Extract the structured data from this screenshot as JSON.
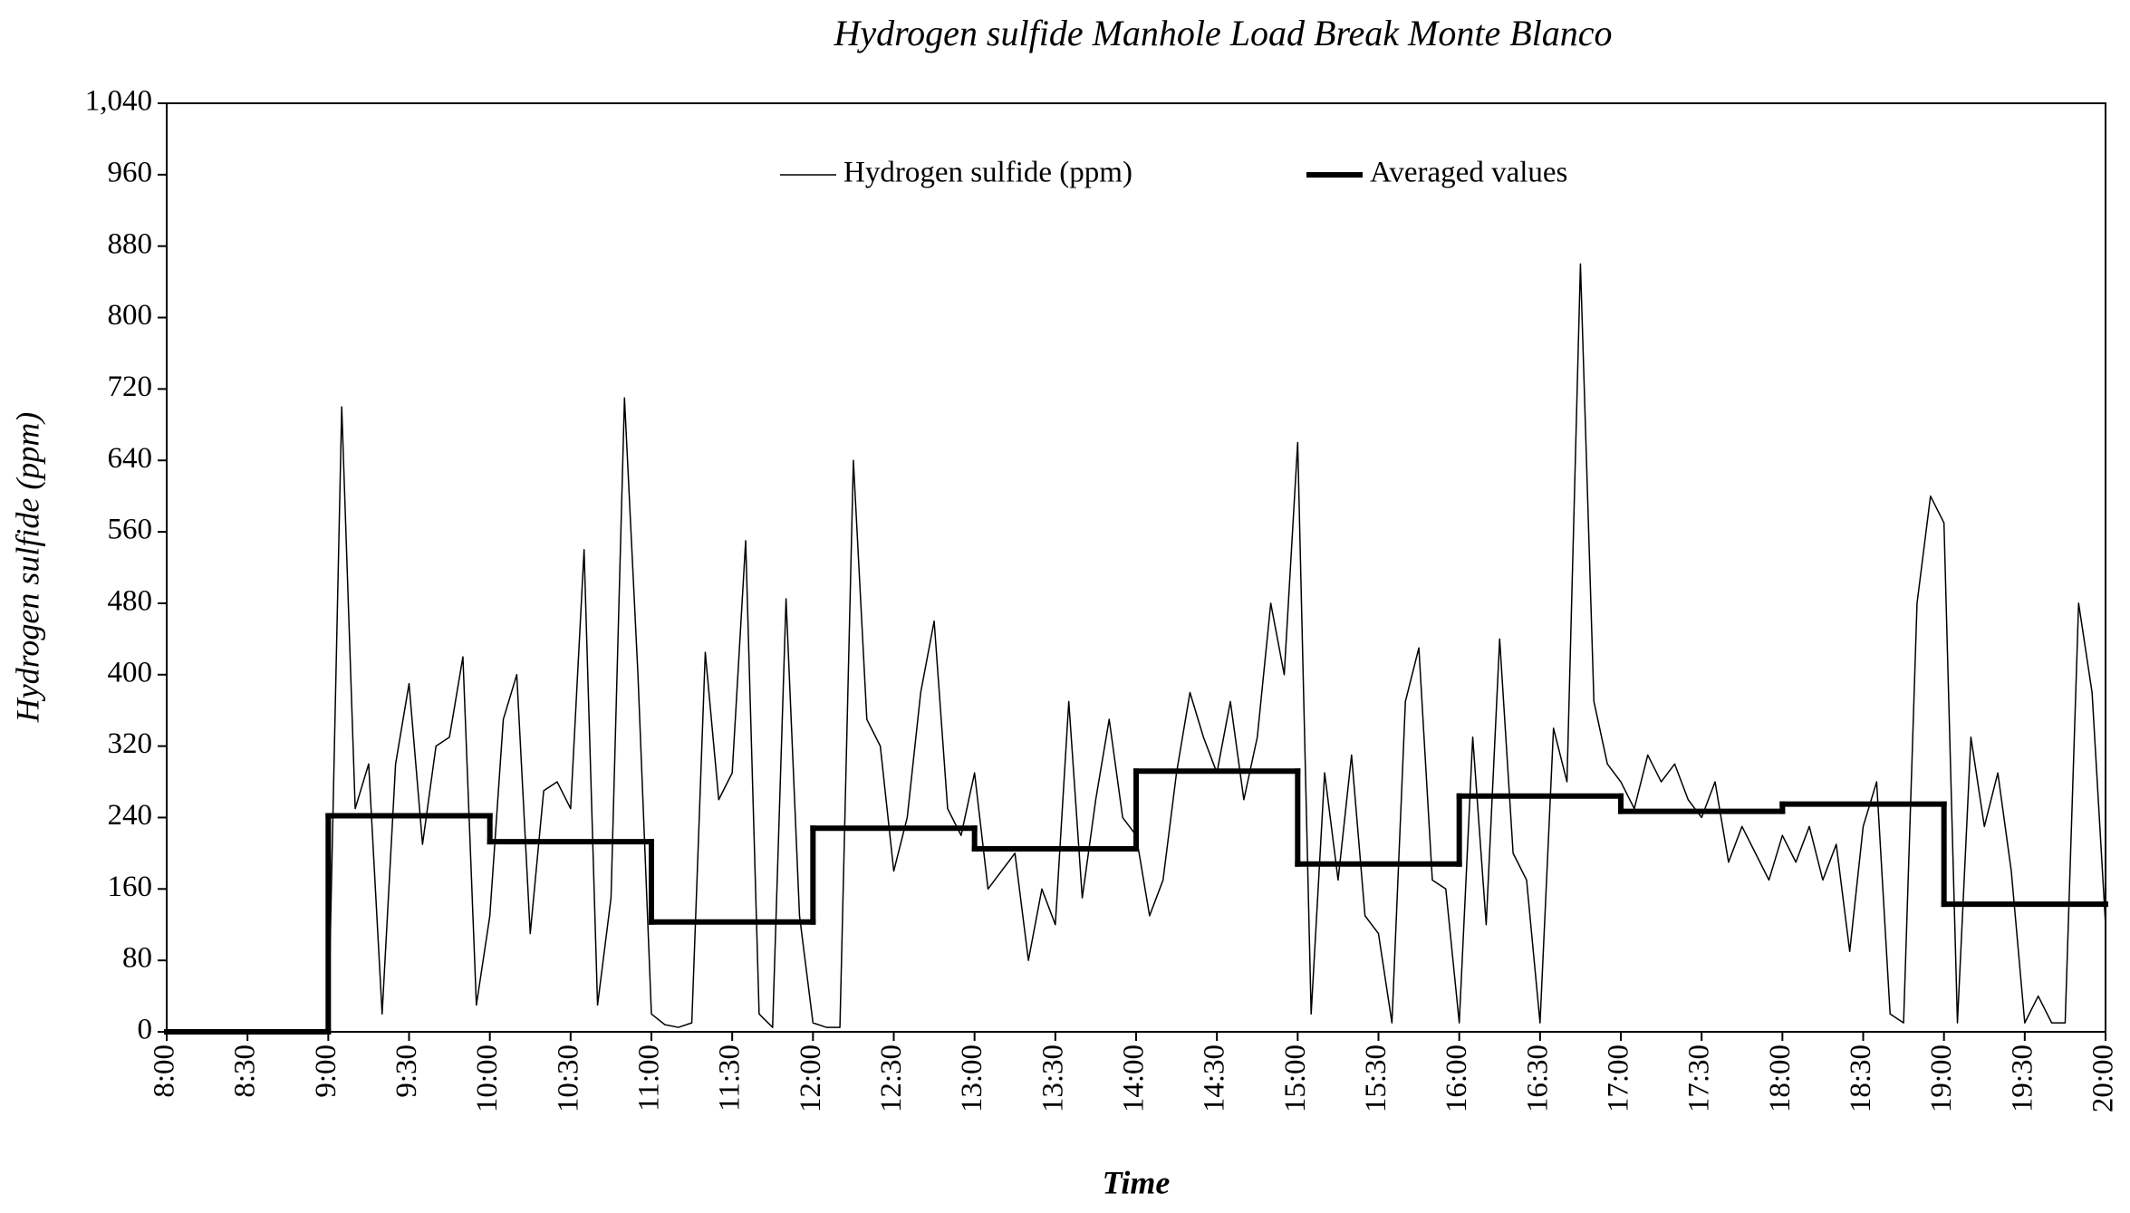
{
  "chart_data": {
    "type": "line",
    "title": "Hydrogen sulfide Manhole Load Break Monte Blanco",
    "x_label": "Time",
    "y_label": "Hydrogen sulfide (ppm)",
    "legend": "top",
    "xlim": [
      480,
      1200
    ],
    "xticks": [
      {
        "value": 480,
        "label": "8:00"
      },
      {
        "value": 510,
        "label": "8:30"
      },
      {
        "value": 540,
        "label": "9:00"
      },
      {
        "value": 570,
        "label": "9:30"
      },
      {
        "value": 600,
        "label": "10:00"
      },
      {
        "value": 630,
        "label": "10:30"
      },
      {
        "value": 660,
        "label": "11:00"
      },
      {
        "value": 690,
        "label": "11:30"
      },
      {
        "value": 720,
        "label": "12:00"
      },
      {
        "value": 750,
        "label": "12:30"
      },
      {
        "value": 780,
        "label": "13:00"
      },
      {
        "value": 810,
        "label": "13:30"
      },
      {
        "value": 840,
        "label": "14:00"
      },
      {
        "value": 870,
        "label": "14:30"
      },
      {
        "value": 900,
        "label": "15:00"
      },
      {
        "value": 930,
        "label": "15:30"
      },
      {
        "value": 960,
        "label": "16:00"
      },
      {
        "value": 990,
        "label": "16:30"
      },
      {
        "value": 1020,
        "label": "17:00"
      },
      {
        "value": 1050,
        "label": "17:30"
      },
      {
        "value": 1080,
        "label": "18:00"
      },
      {
        "value": 1110,
        "label": "18:30"
      },
      {
        "value": 1140,
        "label": "19:00"
      },
      {
        "value": 1170,
        "label": "19:30"
      },
      {
        "value": 1200,
        "label": "20:00"
      }
    ],
    "ylim": [
      0,
      1040
    ],
    "yticks": [
      0,
      80,
      160,
      240,
      320,
      400,
      480,
      560,
      640,
      720,
      800,
      880,
      960,
      {
        "value": 1040,
        "label": "1,040"
      }
    ],
    "series": [
      {
        "name": "Hydrogen sulfide (ppm)",
        "color": "#000000",
        "width": 1.5,
        "x": [
          540,
          545,
          550,
          555,
          560,
          565,
          570,
          575,
          580,
          585,
          590,
          595,
          600,
          605,
          610,
          615,
          620,
          625,
          630,
          635,
          640,
          645,
          650,
          655,
          660,
          665,
          670,
          675,
          680,
          685,
          690,
          695,
          700,
          705,
          710,
          715,
          720,
          725,
          730,
          735,
          740,
          745,
          750,
          755,
          760,
          765,
          770,
          775,
          780,
          785,
          790,
          795,
          800,
          805,
          810,
          815,
          820,
          825,
          830,
          835,
          840,
          845,
          850,
          855,
          860,
          865,
          870,
          875,
          880,
          885,
          890,
          895,
          900,
          905,
          910,
          915,
          920,
          925,
          930,
          935,
          940,
          945,
          950,
          955,
          960,
          965,
          970,
          975,
          980,
          985,
          990,
          995,
          1000,
          1005,
          1010,
          1015,
          1020,
          1025,
          1030,
          1035,
          1040,
          1045,
          1050,
          1055,
          1060,
          1065,
          1070,
          1075,
          1080,
          1085,
          1090,
          1095,
          1100,
          1105,
          1110,
          1115,
          1120,
          1125,
          1130,
          1135,
          1140,
          1145,
          1150,
          1155,
          1160,
          1165,
          1170,
          1175,
          1180,
          1185,
          1190,
          1195,
          1200
        ],
        "values": [
          0,
          700,
          250,
          300,
          20,
          300,
          390,
          210,
          320,
          330,
          420,
          30,
          130,
          350,
          400,
          110,
          270,
          280,
          250,
          540,
          30,
          150,
          710,
          400,
          20,
          8,
          5,
          10,
          425,
          260,
          290,
          550,
          20,
          5,
          485,
          130,
          10,
          5,
          5,
          640,
          350,
          320,
          180,
          240,
          380,
          460,
          250,
          220,
          290,
          160,
          180,
          200,
          80,
          160,
          120,
          370,
          150,
          260,
          350,
          240,
          220,
          130,
          170,
          290,
          380,
          330,
          290,
          370,
          260,
          330,
          480,
          400,
          660,
          20,
          290,
          170,
          310,
          130,
          110,
          10,
          370,
          430,
          170,
          160,
          10,
          330,
          120,
          440,
          200,
          170,
          10,
          340,
          280,
          860,
          370,
          300,
          280,
          250,
          310,
          280,
          300,
          260,
          240,
          280,
          190,
          230,
          200,
          170,
          220,
          190,
          230,
          170,
          210,
          90,
          230,
          280,
          20,
          10,
          480,
          600,
          570,
          10,
          330,
          230,
          290,
          180,
          10,
          40,
          10,
          10,
          480,
          380,
          120
        ]
      },
      {
        "name": "Averaged values",
        "color": "#000000",
        "width": 6,
        "drawstyle": "steps-post",
        "x": [
          480,
          540,
          600,
          660,
          720,
          780,
          840,
          900,
          960,
          1020,
          1080,
          1140
        ],
        "values": [
          0,
          242,
          213,
          123,
          228,
          205,
          292,
          188,
          264,
          247,
          255,
          143
        ]
      }
    ]
  }
}
